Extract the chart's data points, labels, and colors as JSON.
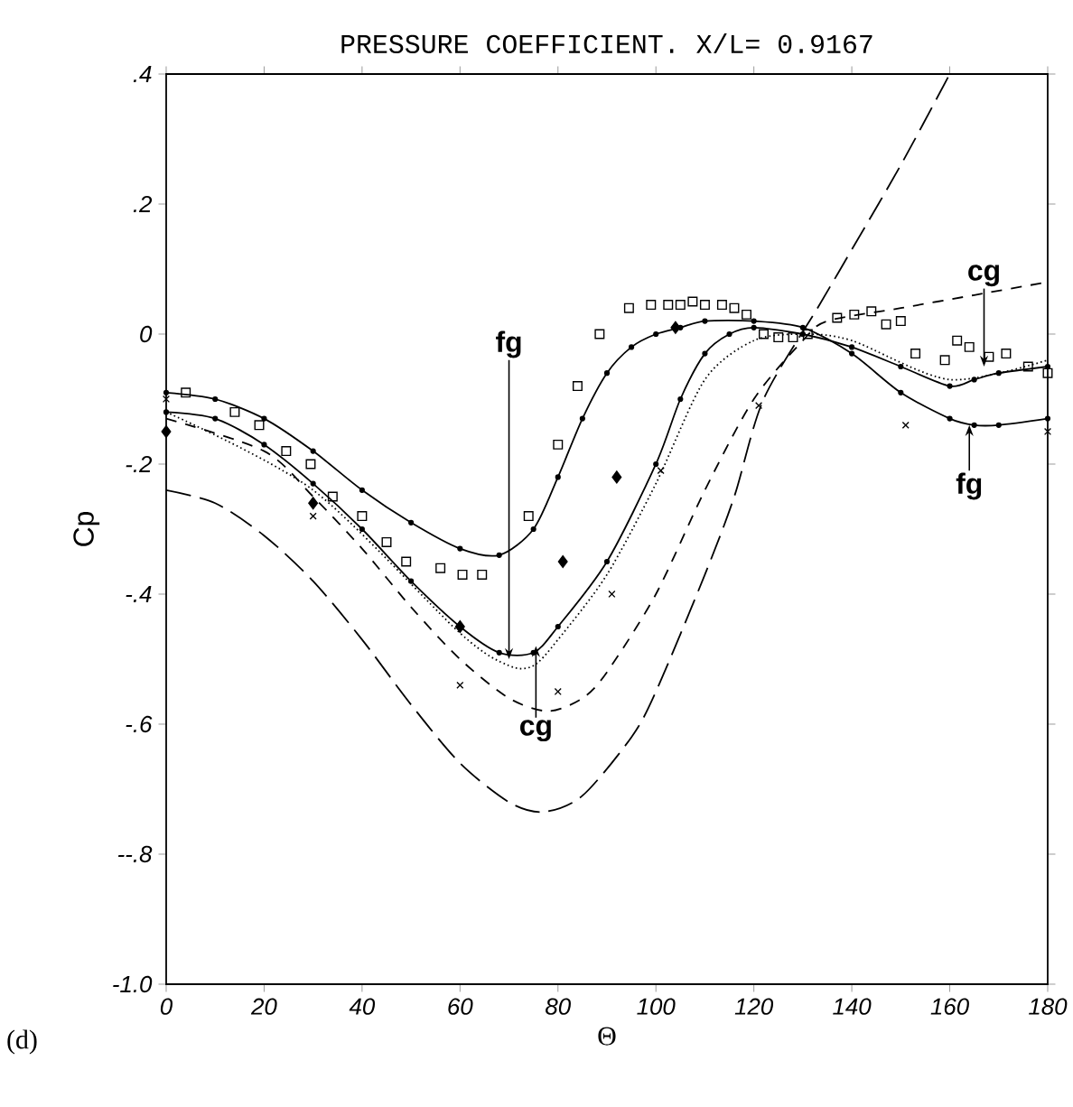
{
  "chart_data": {
    "type": "line",
    "title": "PRESSURE COEFFICIENT. X/L= 0.9167",
    "xlabel": "Θ",
    "ylabel": "Cp",
    "xlim": [
      0,
      180
    ],
    "ylim": [
      -1.0,
      0.4
    ],
    "xticks": [
      0,
      20,
      40,
      60,
      80,
      100,
      120,
      140,
      160,
      180
    ],
    "yticks": [
      {
        "value": -1.0,
        "label": "-1.0"
      },
      {
        "value": -0.8,
        "label": "--.8"
      },
      {
        "value": -0.6,
        "label": "-.6"
      },
      {
        "value": -0.4,
        "label": "-.4"
      },
      {
        "value": -0.2,
        "label": "-.2"
      },
      0,
      {
        "value": 0.2,
        "label": ".2"
      },
      {
        "value": 0.4,
        "label": ".4"
      }
    ],
    "grid": false,
    "series": [
      {
        "type": "line",
        "color": "#000000",
        "marker": "circle",
        "line_style": "solid",
        "x": [
          0,
          10,
          20,
          30,
          40,
          50,
          60,
          68,
          75,
          80,
          85,
          90,
          95,
          100,
          105,
          110,
          120,
          130,
          140,
          150,
          160,
          165,
          170,
          180
        ],
        "values": [
          -0.09,
          -0.1,
          -0.13,
          -0.18,
          -0.24,
          -0.29,
          -0.33,
          -0.34,
          -0.3,
          -0.22,
          -0.13,
          -0.06,
          -0.02,
          0.0,
          0.01,
          0.02,
          0.02,
          0.01,
          -0.03,
          -0.09,
          -0.13,
          -0.14,
          -0.14,
          -0.13
        ]
      },
      {
        "type": "line",
        "color": "#000000",
        "marker": "circle",
        "line_style": "solid",
        "x": [
          0,
          10,
          20,
          30,
          40,
          50,
          60,
          68,
          75,
          80,
          90,
          100,
          105,
          110,
          115,
          120,
          130,
          140,
          150,
          160,
          165,
          170,
          180
        ],
        "values": [
          -0.12,
          -0.13,
          -0.17,
          -0.23,
          -0.3,
          -0.38,
          -0.45,
          -0.49,
          -0.49,
          -0.45,
          -0.35,
          -0.2,
          -0.1,
          -0.03,
          0.0,
          0.01,
          0.0,
          -0.02,
          -0.05,
          -0.08,
          -0.07,
          -0.06,
          -0.05
        ]
      },
      {
        "type": "line",
        "color": "#000000",
        "marker": "none",
        "line_style": "dotted",
        "x": [
          0,
          30,
          60,
          70,
          75,
          80,
          90,
          100,
          110,
          120,
          130,
          140,
          160,
          180
        ],
        "values": [
          -0.12,
          -0.24,
          -0.46,
          -0.51,
          -0.51,
          -0.47,
          -0.37,
          -0.23,
          -0.07,
          -0.01,
          0.0,
          -0.01,
          -0.07,
          -0.04
        ]
      },
      {
        "type": "line",
        "color": "#000000",
        "marker": "none",
        "line_style": "dashed",
        "x": [
          0,
          20,
          30,
          40,
          50,
          60,
          70,
          78,
          85,
          90,
          100,
          110,
          120,
          130,
          135,
          150,
          165,
          180
        ],
        "values": [
          -0.13,
          -0.18,
          -0.25,
          -0.33,
          -0.42,
          -0.5,
          -0.56,
          -0.58,
          -0.56,
          -0.52,
          -0.4,
          -0.24,
          -0.1,
          -0.01,
          0.02,
          0.04,
          0.06,
          0.08
        ]
      },
      {
        "type": "line",
        "color": "#000000",
        "marker": "none",
        "line_style": "dashed",
        "x": [
          0,
          10,
          20,
          30,
          40,
          50,
          60,
          70,
          77,
          85,
          95,
          100,
          110,
          116,
          122,
          133,
          140,
          150,
          160
        ],
        "values": [
          -0.24,
          -0.26,
          -0.31,
          -0.38,
          -0.47,
          -0.57,
          -0.66,
          -0.72,
          -0.735,
          -0.71,
          -0.62,
          -0.55,
          -0.37,
          -0.25,
          -0.1,
          0.04,
          0.13,
          0.26,
          0.4
        ]
      },
      {
        "type": "scatter",
        "color": "#000000",
        "marker": "square",
        "x": [
          4,
          14,
          19,
          24.5,
          29.5,
          34,
          40,
          45,
          49,
          56,
          60.5,
          64.5,
          74,
          80,
          84,
          88.5,
          94.5,
          99,
          102.5,
          105,
          107.5,
          110,
          113.5,
          116,
          118.5,
          122,
          125,
          128,
          131,
          137,
          140.5,
          144,
          147,
          150,
          153,
          159,
          161.5,
          164,
          168,
          171.5,
          176,
          180
        ],
        "values": [
          -0.09,
          -0.12,
          -0.14,
          -0.18,
          -0.2,
          -0.25,
          -0.28,
          -0.32,
          -0.35,
          -0.36,
          -0.37,
          -0.37,
          -0.28,
          -0.17,
          -0.08,
          0.0,
          0.04,
          0.045,
          0.045,
          0.045,
          0.05,
          0.045,
          0.045,
          0.04,
          0.03,
          0.0,
          -0.005,
          -0.005,
          0.0,
          0.025,
          0.03,
          0.035,
          0.015,
          0.02,
          -0.03,
          -0.04,
          -0.01,
          -0.02,
          -0.035,
          -0.03,
          -0.05,
          -0.06
        ]
      },
      {
        "type": "scatter",
        "color": "#000000",
        "marker": "diamond",
        "x": [
          0,
          30,
          60,
          81,
          92,
          104
        ],
        "values": [
          -0.15,
          -0.26,
          -0.45,
          -0.35,
          -0.22,
          0.01
        ]
      },
      {
        "type": "scatter",
        "color": "#000000",
        "marker": "cross",
        "x": [
          0,
          30,
          60,
          80,
          91,
          101,
          121,
          151,
          180
        ],
        "values": [
          -0.1,
          -0.28,
          -0.54,
          -0.55,
          -0.4,
          -0.21,
          -0.11,
          -0.14,
          -0.15
        ]
      }
    ],
    "annotations": [
      {
        "text": "fg",
        "x": 70,
        "y": -0.5
      },
      {
        "text": "cg",
        "x": 75.5,
        "y": -0.48
      },
      {
        "text": "cg",
        "x": 167,
        "y": -0.05
      },
      {
        "text": "fg",
        "x": 164,
        "y": -0.14
      },
      "(d)"
    ]
  }
}
